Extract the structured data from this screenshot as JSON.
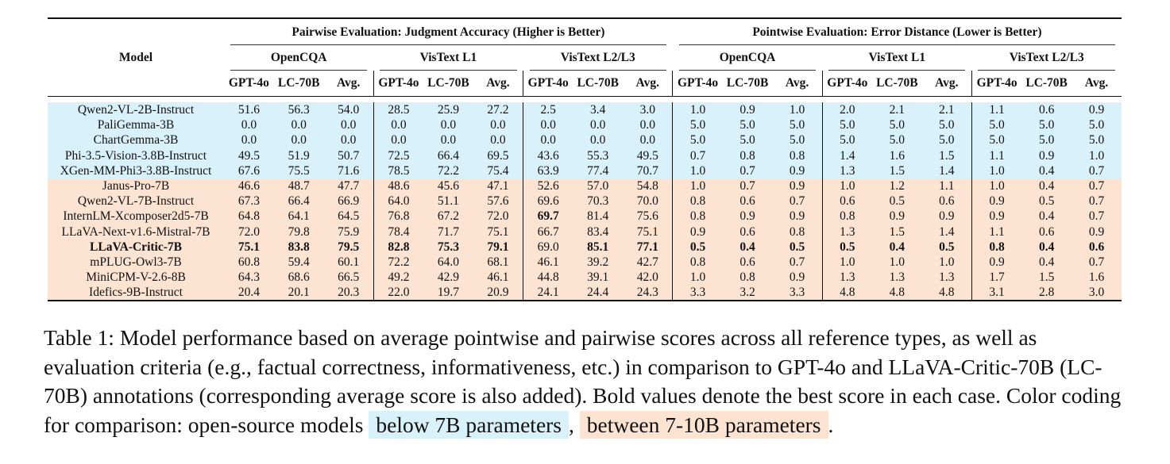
{
  "table": {
    "model_header": "Model",
    "groups": [
      "Pairwise Evaluation: Judgment Accuracy (Higher is Better)",
      "Pointwise Evaluation: Error Distance (Lower is Better)"
    ],
    "datasets": [
      "OpenCQA",
      "VisText L1",
      "VisText L2/L3",
      "OpenCQA",
      "VisText L1",
      "VisText L2/L3"
    ],
    "judges": [
      "GPT-4o",
      "LC-70B",
      "Avg."
    ],
    "rows": [
      {
        "model": "Qwen2-VL-2B-Instruct",
        "group": "blue",
        "bold": false,
        "values": [
          "51.6",
          "56.3",
          "54.0",
          "28.5",
          "25.9",
          "27.2",
          "2.5",
          "3.4",
          "3.0",
          "1.0",
          "0.9",
          "1.0",
          "2.0",
          "2.1",
          "2.1",
          "1.1",
          "0.6",
          "0.9"
        ]
      },
      {
        "model": "PaliGemma-3B",
        "group": "blue",
        "bold": false,
        "values": [
          "0.0",
          "0.0",
          "0.0",
          "0.0",
          "0.0",
          "0.0",
          "0.0",
          "0.0",
          "0.0",
          "5.0",
          "5.0",
          "5.0",
          "5.0",
          "5.0",
          "5.0",
          "5.0",
          "5.0",
          "5.0"
        ]
      },
      {
        "model": "ChartGemma-3B",
        "group": "blue",
        "bold": false,
        "values": [
          "0.0",
          "0.0",
          "0.0",
          "0.0",
          "0.0",
          "0.0",
          "0.0",
          "0.0",
          "0.0",
          "5.0",
          "5.0",
          "5.0",
          "5.0",
          "5.0",
          "5.0",
          "5.0",
          "5.0",
          "5.0"
        ]
      },
      {
        "model": "Phi-3.5-Vision-3.8B-Instruct",
        "group": "blue",
        "bold": false,
        "values": [
          "49.5",
          "51.9",
          "50.7",
          "72.5",
          "66.4",
          "69.5",
          "43.6",
          "55.3",
          "49.5",
          "0.7",
          "0.8",
          "0.8",
          "1.4",
          "1.6",
          "1.5",
          "1.1",
          "0.9",
          "1.0"
        ]
      },
      {
        "model": "XGen-MM-Phi3-3.8B-Instruct",
        "group": "blue",
        "bold": false,
        "values": [
          "67.6",
          "75.5",
          "71.6",
          "78.5",
          "72.2",
          "75.4",
          "63.9",
          "77.4",
          "70.7",
          "1.0",
          "0.7",
          "0.9",
          "1.3",
          "1.5",
          "1.4",
          "1.0",
          "0.4",
          "0.7"
        ]
      },
      {
        "model": "Janus-Pro-7B",
        "group": "peach",
        "bold": false,
        "values": [
          "46.6",
          "48.7",
          "47.7",
          "48.6",
          "45.6",
          "47.1",
          "52.6",
          "57.0",
          "54.8",
          "1.0",
          "0.7",
          "0.9",
          "1.0",
          "1.2",
          "1.1",
          "1.0",
          "0.4",
          "0.7"
        ]
      },
      {
        "model": "Qwen2-VL-7B-Instruct",
        "group": "peach",
        "bold": false,
        "values": [
          "67.3",
          "66.4",
          "66.9",
          "64.0",
          "51.1",
          "57.6",
          "69.6",
          "70.3",
          "70.0",
          "0.8",
          "0.6",
          "0.7",
          "0.6",
          "0.5",
          "0.6",
          "0.9",
          "0.5",
          "0.7"
        ]
      },
      {
        "model": "InternLM-Xcomposer2d5-7B",
        "group": "peach",
        "bold": false,
        "bold_cells": [
          6
        ],
        "values": [
          "64.8",
          "64.1",
          "64.5",
          "76.8",
          "67.2",
          "72.0",
          "69.7",
          "81.4",
          "75.6",
          "0.8",
          "0.9",
          "0.9",
          "0.8",
          "0.9",
          "0.9",
          "0.9",
          "0.4",
          "0.7"
        ]
      },
      {
        "model": "LLaVA-Next-v1.6-Mistral-7B",
        "group": "peach",
        "bold": false,
        "values": [
          "72.0",
          "79.8",
          "75.9",
          "78.4",
          "71.7",
          "75.1",
          "66.7",
          "83.4",
          "75.1",
          "0.9",
          "0.6",
          "0.8",
          "1.3",
          "1.5",
          "1.4",
          "1.1",
          "0.6",
          "0.9"
        ]
      },
      {
        "model": "LLaVA-Critic-7B",
        "group": "peach",
        "bold": true,
        "plain_cells": [
          6
        ],
        "values": [
          "75.1",
          "83.8",
          "79.5",
          "82.8",
          "75.3",
          "79.1",
          "69.0",
          "85.1",
          "77.1",
          "0.5",
          "0.4",
          "0.5",
          "0.5",
          "0.4",
          "0.5",
          "0.8",
          "0.4",
          "0.6"
        ]
      },
      {
        "model": "mPLUG-Owl3-7B",
        "group": "peach",
        "bold": false,
        "values": [
          "60.8",
          "59.4",
          "60.1",
          "72.2",
          "64.0",
          "68.1",
          "46.1",
          "39.2",
          "42.7",
          "0.8",
          "0.6",
          "0.7",
          "1.0",
          "1.0",
          "1.0",
          "0.9",
          "0.4",
          "0.7"
        ]
      },
      {
        "model": "MiniCPM-V-2.6-8B",
        "group": "peach",
        "bold": false,
        "values": [
          "64.3",
          "68.6",
          "66.5",
          "49.2",
          "42.9",
          "46.1",
          "44.8",
          "39.1",
          "42.0",
          "1.0",
          "0.8",
          "0.9",
          "1.3",
          "1.3",
          "1.3",
          "1.7",
          "1.5",
          "1.6"
        ]
      },
      {
        "model": "Idefics-9B-Instruct",
        "group": "peach",
        "bold": false,
        "values": [
          "20.4",
          "20.1",
          "20.3",
          "22.0",
          "19.7",
          "20.9",
          "24.1",
          "24.4",
          "24.3",
          "3.3",
          "3.2",
          "3.3",
          "4.8",
          "4.8",
          "4.8",
          "3.1",
          "2.8",
          "3.0"
        ]
      }
    ]
  },
  "caption": {
    "main": "Table 1: Model performance based on average pointwise and pairwise scores across all reference types, as well as evaluation criteria (e.g., factual correctness, informativeness, etc.) in comparison to GPT-4o and LLaVA-Critic-70B (LC-70B) annotations (corresponding average score is also added). Bold values denote the best score in each case. Color coding for comparison: open-source models",
    "blue_label": "below 7B parameters",
    "comma": ",",
    "peach_label": "between 7-10B parameters",
    "end": "."
  },
  "colors": {
    "blue": "#d9f1fb",
    "peach": "#fde3d2"
  }
}
